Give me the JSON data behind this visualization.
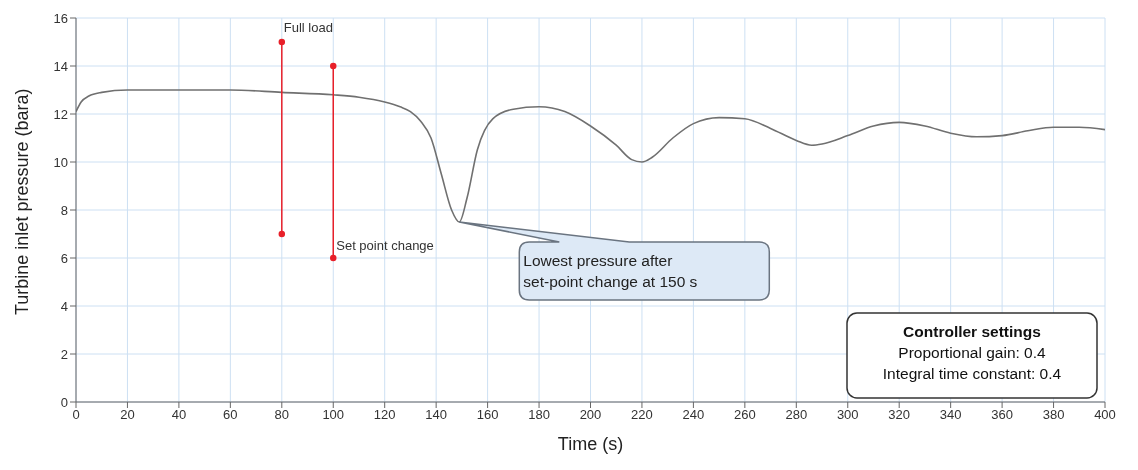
{
  "chart_data": {
    "type": "line",
    "xlabel": "Time (s)",
    "ylabel": "Turbine inlet pressure (bara)",
    "xlim": [
      0,
      400
    ],
    "xticks": [
      0,
      20,
      40,
      60,
      80,
      100,
      120,
      140,
      160,
      180,
      200,
      220,
      240,
      260,
      280,
      300,
      320,
      340,
      360,
      380,
      400
    ],
    "ylim": [
      0,
      16
    ],
    "yticks": [
      0,
      2,
      4,
      6,
      8,
      10,
      12,
      14,
      16
    ],
    "grid": true,
    "marker": "none",
    "series": [
      {
        "color": "#707070",
        "x": [
          0,
          2,
          5,
          10,
          20,
          40,
          60,
          80,
          100,
          110,
          120,
          126,
          130,
          134,
          138,
          142,
          146,
          149,
          152,
          156,
          162,
          170,
          180,
          190,
          200,
          210,
          216,
          220,
          224,
          232,
          240,
          250,
          260,
          270,
          280,
          286,
          290,
          300,
          310,
          320,
          330,
          340,
          350,
          360,
          370,
          380,
          390,
          400
        ],
        "values": [
          12.1,
          12.5,
          12.75,
          12.9,
          13.0,
          13.0,
          13.0,
          12.9,
          12.8,
          12.7,
          12.5,
          12.3,
          12.1,
          11.7,
          11.0,
          9.5,
          8.0,
          7.5,
          8.5,
          10.5,
          11.8,
          12.2,
          12.3,
          12.1,
          11.5,
          10.7,
          10.1,
          10.0,
          10.2,
          11.0,
          11.6,
          11.85,
          11.8,
          11.4,
          10.9,
          10.7,
          10.75,
          11.1,
          11.5,
          11.65,
          11.5,
          11.2,
          11.05,
          11.1,
          11.3,
          11.45,
          11.45,
          11.35
        ]
      },
      {
        "color": "#e8202a",
        "marker": "circle",
        "x": [
          80,
          80
        ],
        "values": [
          7,
          15
        ]
      },
      {
        "color": "#e8202a",
        "marker": "circle",
        "x": [
          100,
          100
        ],
        "values": [
          6,
          14
        ]
      }
    ],
    "annotations": [
      {
        "text": "Full load",
        "x": 80,
        "y": 15
      },
      {
        "text": "Set point change",
        "x": 100,
        "y": 6
      },
      "Lowest pressure after set-point change at 150 s",
      "Controller settings",
      "Proportional gain: 0.4",
      "Integral time constant: 0.4"
    ]
  }
}
